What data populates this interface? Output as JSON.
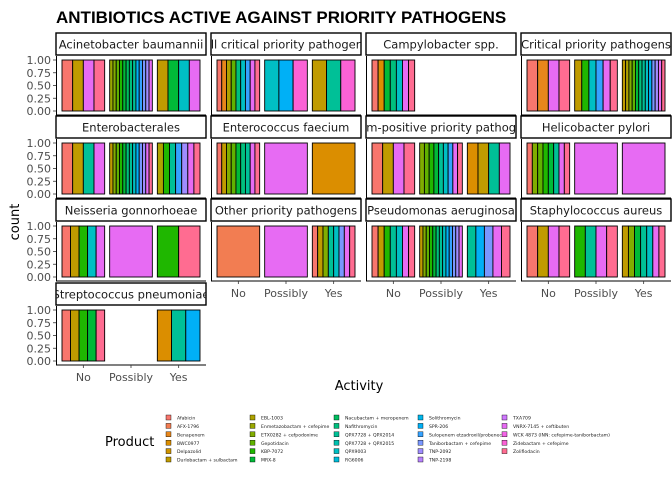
{
  "chart_data": {
    "type": "bar",
    "stacked": "fill",
    "title": "ANTIBIOTICS ACTIVE AGAINST PRIORITY PATHOGENS",
    "xlabel": "Activity",
    "ylabel": "count",
    "ylim": [
      0,
      1
    ],
    "y_ticks": [
      "0.00",
      "0.25",
      "0.50",
      "0.75",
      "1.00"
    ],
    "categories": [
      "No",
      "Possibly",
      "Yes"
    ],
    "legend": {
      "title": "Product",
      "position": "bottom",
      "items": [
        {
          "label": "Afabicin",
          "color": "#F8766D"
        },
        {
          "label": "AFX-1796",
          "color": "#F27D52"
        },
        {
          "label": "Benapenem",
          "color": "#E7861B"
        },
        {
          "label": "BWC0977",
          "color": "#DB8E00"
        },
        {
          "label": "Delpazolid",
          "color": "#CF9400"
        },
        {
          "label": "Durlobactam + sulbactam",
          "color": "#C09B00"
        },
        {
          "label": "EBL-1003",
          "color": "#AEA200"
        },
        {
          "label": "Enmetazobactam + cefepime",
          "color": "#9AA800"
        },
        {
          "label": "ETX0282 + cefpodoxime",
          "color": "#81AD00"
        },
        {
          "label": "Gepotidacin",
          "color": "#60B200"
        },
        {
          "label": "KBP-7072",
          "color": "#1FB700"
        },
        {
          "label": "MRX-8",
          "color": "#00BA38"
        },
        {
          "label": "Nacubactam + meropenem",
          "color": "#00BD5F"
        },
        {
          "label": "Nafithromycin",
          "color": "#00BF7D"
        },
        {
          "label": "QPX7728 + QPX2014",
          "color": "#00C097"
        },
        {
          "label": "QPX7728 + QPX2015",
          "color": "#00C0AF"
        },
        {
          "label": "QPX9003",
          "color": "#00BFC4"
        },
        {
          "label": "RG6006",
          "color": "#00BBD8"
        },
        {
          "label": "Solithromycin",
          "color": "#00B6EB"
        },
        {
          "label": "SPR-206",
          "color": "#00B0F6"
        },
        {
          "label": "Sulopenem etzadroxil/probenecid",
          "color": "#35A2FF"
        },
        {
          "label": "Taniborbactam + cefepime",
          "color": "#7997FF"
        },
        {
          "label": "TNP-2092",
          "color": "#9F8CFF"
        },
        {
          "label": "TNP-2198",
          "color": "#B983FF"
        },
        {
          "label": "TXA709",
          "color": "#CF78FF"
        },
        {
          "label": "VNRX-7145 + ceftibuten",
          "color": "#E76BF3"
        },
        {
          "label": "WCK 4873 (INN: cefepime-taniborbactam)",
          "color": "#F265E6"
        },
        {
          "label": "Zidebactam + cefepime",
          "color": "#FA62D5"
        },
        {
          "label": "Zoliflodacin",
          "color": "#FF6C91"
        }
      ]
    },
    "facets": [
      {
        "name": "Acinetobacter baumannii",
        "bars": {
          "No": [
            "#F8766D",
            "#C09B00",
            "#E76BF3",
            "#FF6C91"
          ],
          "Possibly": [
            "#9AA800",
            "#81AD00",
            "#60B200",
            "#1FB700",
            "#00BA38",
            "#00BD5F",
            "#00BF7D",
            "#00C097",
            "#00B0F6",
            "#35A2FF",
            "#7997FF",
            "#9F8CFF",
            "#E76BF3"
          ],
          "Yes": [
            "#C09B00",
            "#00BA38",
            "#00BFC4",
            "#E76BF3"
          ]
        }
      },
      {
        "name": "All critical priority pathogens",
        "bars": {
          "No": [
            "#F8766D",
            "#E7861B",
            "#AEA200",
            "#60B200",
            "#00BF7D",
            "#00BFC4",
            "#35A2FF",
            "#E76BF3",
            "#FF6C91"
          ],
          "Possibly": [
            "#00BFC4",
            "#00B0F6",
            "#FA62D5"
          ],
          "Yes": [
            "#C09B00",
            "#00C097",
            "#FA62D5"
          ]
        }
      },
      {
        "name": "Campylobacter spp.",
        "bars": {
          "No": [
            "#F8766D",
            "#DB8E00",
            "#00BA38",
            "#00BF7D",
            "#00BFC4",
            "#E76BF3",
            "#FF6C91"
          ]
        }
      },
      {
        "name": "Critical priority pathogens",
        "bars": {
          "No": [
            "#F8766D",
            "#E7861B",
            "#E76BF3",
            "#FF6C91"
          ],
          "Possibly": [
            "#C09B00",
            "#1FB700",
            "#00BFC4",
            "#35A2FF",
            "#E76BF3",
            "#FF6C91"
          ],
          "Yes": [
            "#C09B00",
            "#AEA200",
            "#81AD00",
            "#60B200",
            "#00BA38",
            "#00BF7D",
            "#00C097",
            "#00BFC4",
            "#00B0F6",
            "#7997FF",
            "#9F8CFF",
            "#E76BF3",
            "#FF6C91"
          ]
        }
      },
      {
        "name": "Enterobacterales",
        "bars": {
          "No": [
            "#F8766D",
            "#C09B00",
            "#00C097",
            "#E76BF3"
          ],
          "Possibly": [
            "#C09B00",
            "#81AD00",
            "#60B200",
            "#1FB700",
            "#00BA38",
            "#00BF7D",
            "#00C097",
            "#00BFC4",
            "#00B0F6",
            "#7997FF",
            "#9F8CFF",
            "#E76BF3",
            "#FF6C91"
          ],
          "Yes": [
            "#AEA200",
            "#1FB700",
            "#00C097",
            "#35A2FF",
            "#9F8CFF",
            "#E76BF3",
            "#FF6C91"
          ]
        }
      },
      {
        "name": "Enterococcus faecium",
        "bars": {
          "No": [
            "#F8766D",
            "#C09B00",
            "#81AD00",
            "#60B200",
            "#00BA38",
            "#00BF7D",
            "#00C097",
            "#E76BF3",
            "#FF6C91"
          ],
          "Possibly": [
            "#E76BF3"
          ],
          "Yes": [
            "#DB8E00"
          ]
        }
      },
      {
        "name": "Gram-positive priority pathogens",
        "bars": {
          "No": [
            "#F8766D",
            "#C09B00",
            "#E76BF3",
            "#FF6C91"
          ],
          "Possibly": [
            "#81AD00",
            "#60B200",
            "#1FB700",
            "#00BA38",
            "#00C097",
            "#00BFC4",
            "#35A2FF",
            "#E76BF3",
            "#FF6C91"
          ],
          "Yes": [
            "#DB8E00",
            "#C09B00",
            "#00C097",
            "#E76BF3"
          ]
        }
      },
      {
        "name": "Helicobacter pylori",
        "bars": {
          "No": [
            "#F8766D",
            "#81AD00",
            "#60B200",
            "#1FB700",
            "#00BA38",
            "#00C097",
            "#E76BF3",
            "#FF6C91"
          ],
          "Possibly": [
            "#E76BF3"
          ],
          "Yes": [
            "#E76BF3"
          ]
        }
      },
      {
        "name": "Neisseria gonnorhoeae",
        "bars": {
          "No": [
            "#F8766D",
            "#C09B00",
            "#1FB700",
            "#00BFC4",
            "#E76BF3"
          ],
          "Possibly": [
            "#E76BF3"
          ],
          "Yes": [
            "#1FB700",
            "#FF6C91"
          ]
        }
      },
      {
        "name": "Other priority pathogens",
        "bars": {
          "No": [
            "#F27D52"
          ],
          "Possibly": [
            "#E76BF3"
          ],
          "Yes": [
            "#F8766D",
            "#C09B00",
            "#81AD00",
            "#00C097",
            "#00BFC4",
            "#7997FF",
            "#E76BF3",
            "#FF6C91"
          ]
        }
      },
      {
        "name": "Pseudomonas aeruginosa",
        "bars": {
          "No": [
            "#F8766D",
            "#C09B00",
            "#1FB700",
            "#00C097",
            "#00BFC4",
            "#E76BF3",
            "#FF6C91"
          ],
          "Possibly": [
            "#C09B00",
            "#81AD00",
            "#60B200",
            "#1FB700",
            "#00BA38",
            "#00BF7D",
            "#00C097",
            "#00BFC4",
            "#00B0F6",
            "#35A2FF",
            "#7997FF",
            "#9F8CFF",
            "#E76BF3"
          ],
          "Yes": [
            "#00C097",
            "#00B0F6",
            "#7997FF",
            "#E76BF3",
            "#FF6C91"
          ]
        }
      },
      {
        "name": "Staphylococcus aureus",
        "bars": {
          "No": [
            "#F8766D",
            "#C09B00",
            "#E76BF3",
            "#FF6C91"
          ],
          "Possibly": [
            "#1FB700",
            "#00C097",
            "#E76BF3",
            "#FF6C91"
          ],
          "Yes": [
            "#C09B00",
            "#81AD00",
            "#00BA38",
            "#00C097",
            "#00BFC4",
            "#E76BF3",
            "#FF6C91"
          ]
        }
      },
      {
        "name": "Streptococcus pneumoniae",
        "bars": {
          "No": [
            "#F8766D",
            "#C09B00",
            "#1FB700",
            "#00BA38",
            "#FF6C91"
          ],
          "Yes": [
            "#DB8E00",
            "#00C097",
            "#00B0F6"
          ]
        }
      }
    ]
  }
}
